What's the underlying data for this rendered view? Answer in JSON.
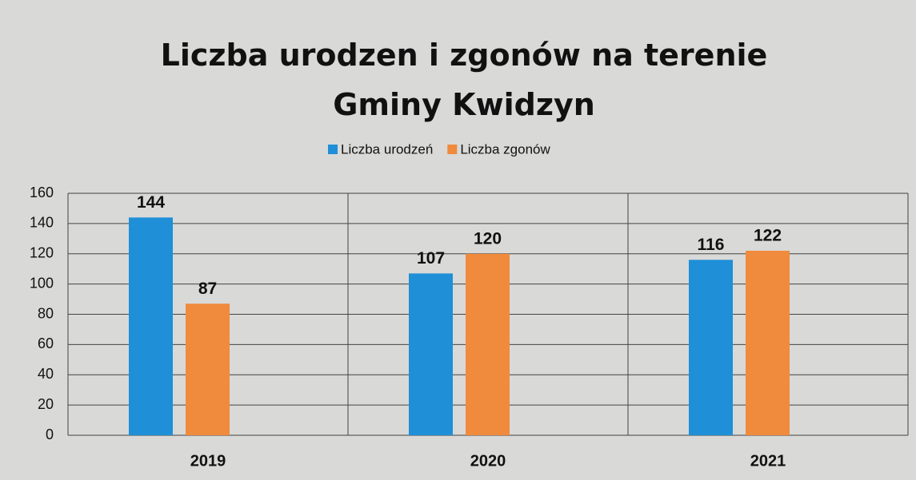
{
  "chart_data": {
    "type": "bar",
    "title": "Liczba urodzen i zgonów na terenie Gminy Kwidzyn",
    "categories": [
      "2019",
      "2020",
      "2021"
    ],
    "series": [
      {
        "name": "Liczba urodzeń",
        "color": "#1f8fd8",
        "values": [
          144,
          107,
          116
        ]
      },
      {
        "name": "Liczba zgonów",
        "color": "#f08a3c",
        "values": [
          87,
          120,
          122
        ]
      }
    ],
    "ylim": [
      0,
      160
    ],
    "yticks": [
      0,
      20,
      40,
      60,
      80,
      100,
      120,
      140,
      160
    ],
    "grid": true,
    "legend": "top"
  }
}
